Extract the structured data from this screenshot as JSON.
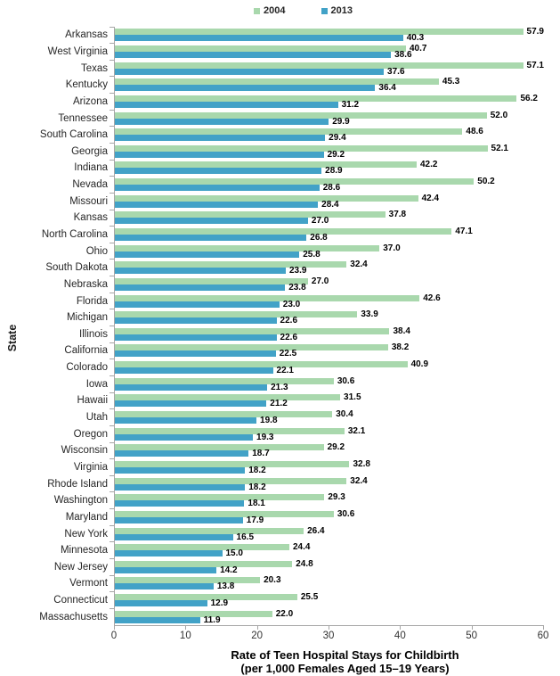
{
  "legend": {
    "items": [
      {
        "label": "2004",
        "color": "#a9d8ad"
      },
      {
        "label": "2013",
        "color": "#42a2c7"
      }
    ]
  },
  "colors": {
    "series_2004": "#a9d8ad",
    "series_2013": "#42a2c7",
    "axis_line": "#a6a6a6",
    "value_label": "#000000"
  },
  "chart_data": {
    "type": "bar",
    "orientation": "horizontal",
    "title": "",
    "ylabel": "State",
    "xlabel_line1": "Rate of Teen Hospital Stays for Childbirth",
    "xlabel_line2": "(per 1,000 Females Aged 15–19 Years)",
    "xlim": [
      0,
      60
    ],
    "xticks": [
      0,
      10,
      20,
      30,
      40,
      50,
      60
    ],
    "grid": false,
    "legend_position": "top-center",
    "value_labels": true,
    "categories": [
      "Arkansas",
      "West Virginia",
      "Texas",
      "Kentucky",
      "Arizona",
      "Tennessee",
      "South Carolina",
      "Georgia",
      "Indiana",
      "Nevada",
      "Missouri",
      "Kansas",
      "North Carolina",
      "Ohio",
      "South Dakota",
      "Nebraska",
      "Florida",
      "Michigan",
      "Illinois",
      "California",
      "Colorado",
      "Iowa",
      "Hawaii",
      "Utah",
      "Oregon",
      "Wisconsin",
      "Virginia",
      "Rhode Island",
      "Washington",
      "Maryland",
      "New York",
      "Minnesota",
      "New Jersey",
      "Vermont",
      "Connecticut",
      "Massachusetts"
    ],
    "series": [
      {
        "name": "2004",
        "color": "#a9d8ad",
        "values": [
          57.9,
          40.7,
          57.1,
          45.3,
          56.2,
          52.0,
          48.6,
          52.1,
          42.2,
          50.2,
          42.4,
          37.8,
          47.1,
          37.0,
          32.4,
          27.0,
          42.6,
          33.9,
          38.4,
          38.2,
          40.9,
          30.6,
          31.5,
          30.4,
          32.1,
          29.2,
          32.8,
          32.4,
          29.3,
          30.6,
          26.4,
          24.4,
          24.8,
          20.3,
          25.5,
          22.0
        ]
      },
      {
        "name": "2013",
        "color": "#42a2c7",
        "values": [
          40.3,
          38.6,
          37.6,
          36.4,
          31.2,
          29.9,
          29.4,
          29.2,
          28.9,
          28.6,
          28.4,
          27.0,
          26.8,
          25.8,
          23.9,
          23.8,
          23.0,
          22.6,
          22.6,
          22.5,
          22.1,
          21.3,
          21.2,
          19.8,
          19.3,
          18.7,
          18.2,
          18.2,
          18.1,
          17.9,
          16.5,
          15.0,
          14.2,
          13.8,
          12.9,
          11.9
        ]
      }
    ]
  }
}
